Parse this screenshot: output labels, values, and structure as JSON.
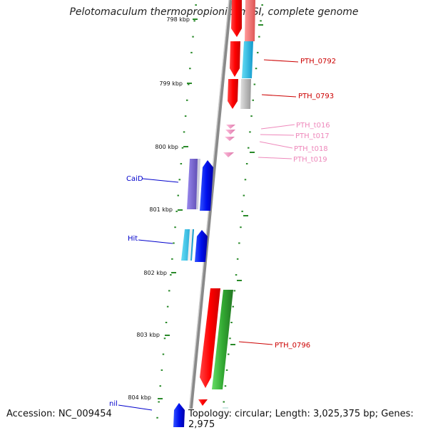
{
  "title": "Pelotomaculum thermopropionicum SI, complete genome",
  "footer": {
    "accession": "Accession: NC_009454",
    "topology": "Topology: circular; Length: 3,025,375 bp; Genes: 2,975"
  },
  "ticks": [
    "798 kbp",
    "799 kbp",
    "800 kbp",
    "801 kbp",
    "802 kbp",
    "803 kbp",
    "804 kbp"
  ],
  "gene_labels": [
    {
      "name": "PTH_0792",
      "color": "#cc0000"
    },
    {
      "name": "PTH_0793",
      "color": "#cc0000"
    },
    {
      "name": "PTH_t016",
      "color": "#ee88bb"
    },
    {
      "name": "PTH_t017",
      "color": "#ee88bb"
    },
    {
      "name": "PTH_t018",
      "color": "#ee88bb"
    },
    {
      "name": "PTH_t019",
      "color": "#ee88bb"
    },
    {
      "name": "CaiD",
      "color": "#0000cc"
    },
    {
      "name": "Hit",
      "color": "#0000cc"
    },
    {
      "name": "PTH_0796",
      "color": "#cc0000"
    },
    {
      "name": "nil",
      "color": "#0000cc"
    }
  ],
  "colors": {
    "forward_strand": "#ff0000",
    "reverse_strand": "#0000ff",
    "trna": "#ee88bb",
    "cog_green": "#33aa33",
    "cog_purple": "#7766cc",
    "cog_cyan": "#22bbdd",
    "cog_gray": "#bbbbbb",
    "cog_pink": "#ee7777",
    "backbone": "#8a8a8a",
    "tick": "#2a8a2a"
  }
}
